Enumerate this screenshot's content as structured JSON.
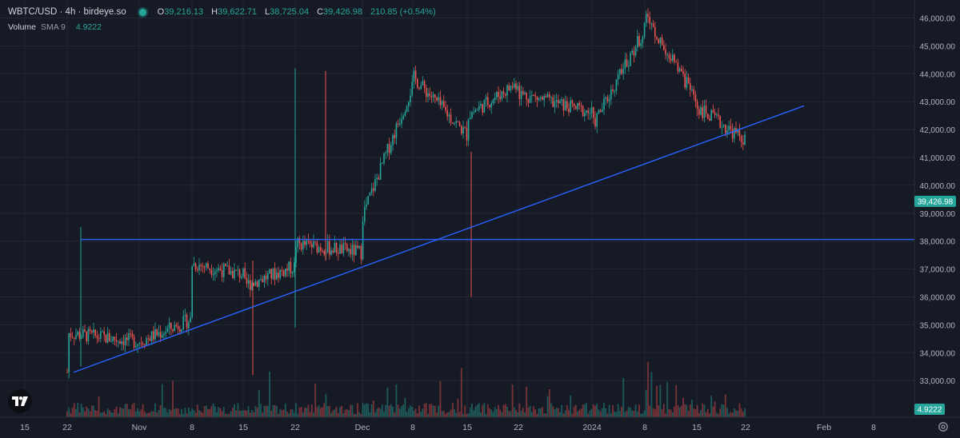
{
  "header": {
    "symbol": "WBTC/USD · 4h · birdeye.so",
    "open_label": "O",
    "open": "39,216.13",
    "high_label": "H",
    "high": "39,622.71",
    "low_label": "L",
    "low": "38,725.04",
    "close_label": "C",
    "close": "39,426.98",
    "change": "210.85 (+0.54%)",
    "volume_label": "Volume",
    "sma_label": "SMA 9",
    "volume_value": "4.9222"
  },
  "icons": {
    "logo": "tradingview-logo-icon",
    "settings": "gear-icon",
    "status": "status-dot-icon"
  },
  "colors": {
    "background": "#161a25",
    "grid": "#232734",
    "up": "#26a69a",
    "down": "#ef5350",
    "trendline": "#2962ff",
    "axis_text": "#b2b5be",
    "price_label_bg": "#26a69a"
  },
  "chart_data": {
    "type": "candlestick",
    "interval": "4h",
    "y_axis": {
      "side": "right",
      "ticks": [
        "46,000.00",
        "45,000.00",
        "44,000.00",
        "43,000.00",
        "42,000.00",
        "41,000.00",
        "40,000.00",
        "39,000.00",
        "38,000.00",
        "37,000.00",
        "36,000.00",
        "35,000.00",
        "34,000.00",
        "33,000.00"
      ],
      "range": [
        32400,
        46200
      ]
    },
    "x_axis": {
      "ticks": [
        "15",
        "22",
        "Nov",
        "8",
        "15",
        "22",
        "Dec",
        "8",
        "15",
        "22",
        "2024",
        "8",
        "15",
        "22",
        "Feb",
        "8"
      ]
    },
    "last_price_label": "39,426.98",
    "volume_label": "4.9222",
    "price_path": [
      [
        "22",
        33300
      ],
      [
        "22",
        34700
      ],
      [
        "Nov",
        34400
      ],
      [
        "8",
        35200
      ],
      [
        "8",
        37200
      ],
      [
        "15",
        36800
      ],
      [
        "15",
        36400
      ],
      [
        "22",
        37100
      ],
      [
        "22",
        37900
      ],
      [
        "Dec",
        37600
      ],
      [
        "Dec",
        38900
      ],
      [
        "8",
        43600
      ],
      [
        "8",
        43900
      ],
      [
        "15",
        41800
      ],
      [
        "15",
        42500
      ],
      [
        "22",
        43700
      ],
      [
        "22",
        43300
      ],
      [
        "2024",
        42600
      ],
      [
        "2024",
        42100
      ],
      [
        "8",
        45600
      ],
      [
        "8",
        46200
      ],
      [
        "15",
        43000
      ],
      [
        "15",
        42800
      ],
      [
        "22",
        41600
      ],
      [
        "22",
        39427
      ]
    ],
    "wicks": [
      {
        "x": "22",
        "low": 33500,
        "high": 38500
      },
      {
        "x": "22",
        "low": 34900,
        "high": 44200
      },
      {
        "x": "22",
        "low": 37300,
        "high": 44100
      },
      {
        "x": "15",
        "low": 36000,
        "high": 41200
      },
      {
        "x": "15",
        "low": 33200,
        "high": 37300
      }
    ],
    "lines": [
      {
        "kind": "horizontal",
        "price": 38060
      },
      {
        "kind": "trendline",
        "from": [
          "22",
          33300
        ],
        "to": [
          "Feb",
          42850
        ]
      }
    ]
  }
}
